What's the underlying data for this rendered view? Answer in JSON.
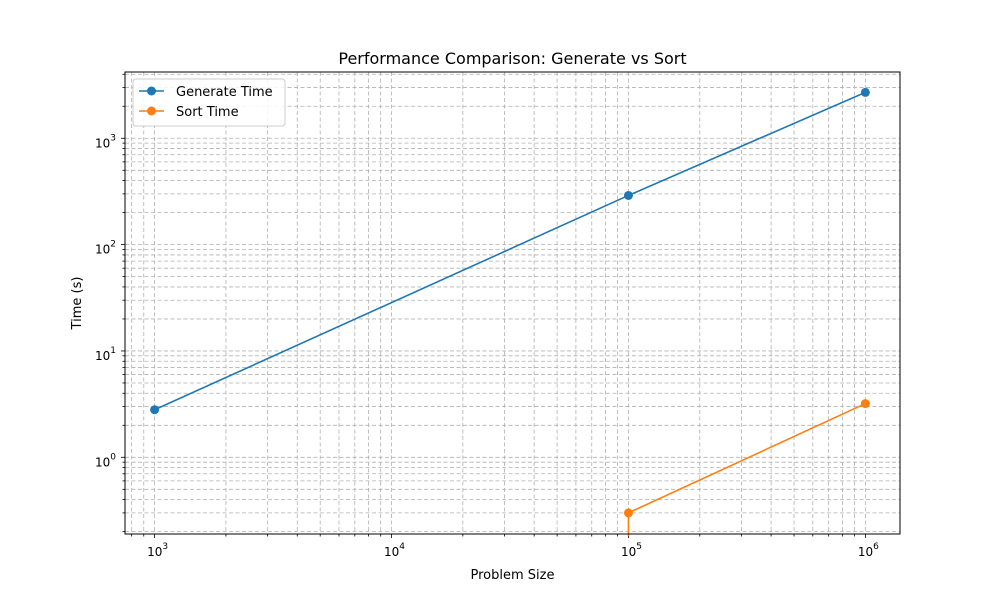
{
  "chart_data": {
    "type": "line",
    "title": "Performance Comparison: Generate vs Sort",
    "xlabel": "Problem Size",
    "ylabel": "Time (s)",
    "xscale": "log",
    "yscale": "log",
    "xlim": [
      750,
      1400000
    ],
    "ylim": [
      0.19,
      4200
    ],
    "x_ticks": [
      {
        "value": 1000,
        "base": "10",
        "exp": "3"
      },
      {
        "value": 10000,
        "base": "10",
        "exp": "4"
      },
      {
        "value": 100000,
        "base": "10",
        "exp": "5"
      },
      {
        "value": 1000000,
        "base": "10",
        "exp": "6"
      }
    ],
    "y_ticks": [
      {
        "value": 1,
        "base": "10",
        "exp": "0"
      },
      {
        "value": 10,
        "base": "10",
        "exp": "1"
      },
      {
        "value": 100,
        "base": "10",
        "exp": "2"
      },
      {
        "value": 1000,
        "base": "10",
        "exp": "3"
      }
    ],
    "grid": true,
    "grid_which": "both",
    "legend_position": "upper-left",
    "series": [
      {
        "name": "Generate Time",
        "color": "#1f77b4",
        "marker": "circle",
        "points": [
          [
            1000,
            2.8
          ],
          [
            100000,
            290
          ],
          [
            1000000,
            2700
          ]
        ]
      },
      {
        "name": "Sort Time",
        "color": "#ff7f0e",
        "marker": "circle",
        "points": [
          [
            1000,
            0.0
          ],
          [
            100000,
            0.3
          ],
          [
            1000000,
            3.2
          ]
        ]
      }
    ]
  }
}
